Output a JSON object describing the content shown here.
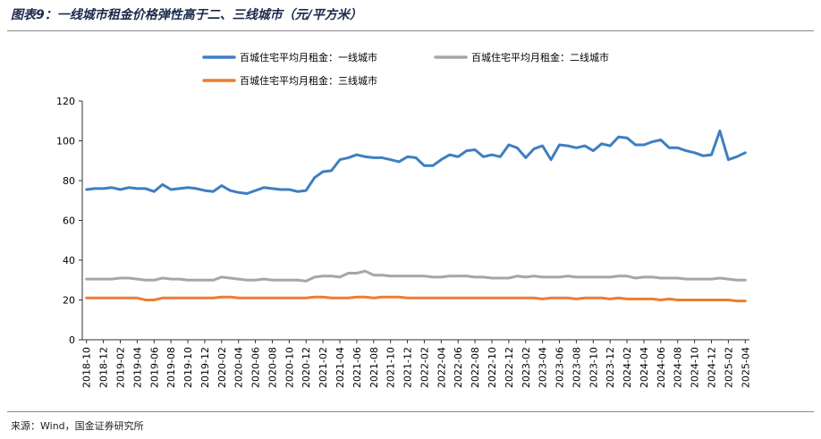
{
  "page": {
    "title": "图表9：一线城市租金价格弹性高于二、三线城市（元/平方米）",
    "source": "来源：Wind，国金证券研究所"
  },
  "chart_data": {
    "type": "line",
    "x": [
      "2018-10",
      "2018-11",
      "2018-12",
      "2019-01",
      "2019-02",
      "2019-03",
      "2019-04",
      "2019-05",
      "2019-06",
      "2019-07",
      "2019-08",
      "2019-09",
      "2019-10",
      "2019-11",
      "2019-12",
      "2020-01",
      "2020-02",
      "2020-03",
      "2020-04",
      "2020-05",
      "2020-06",
      "2020-07",
      "2020-08",
      "2020-09",
      "2020-10",
      "2020-11",
      "2020-12",
      "2021-01",
      "2021-02",
      "2021-03",
      "2021-04",
      "2021-05",
      "2021-06",
      "2021-07",
      "2021-08",
      "2021-09",
      "2021-10",
      "2021-11",
      "2021-12",
      "2022-01",
      "2022-02",
      "2022-03",
      "2022-04",
      "2022-05",
      "2022-06",
      "2022-07",
      "2022-08",
      "2022-09",
      "2022-10",
      "2022-11",
      "2022-12",
      "2023-01",
      "2023-02",
      "2023-03",
      "2023-04",
      "2023-05",
      "2023-06",
      "2023-07",
      "2023-08",
      "2023-09",
      "2023-10",
      "2023-11",
      "2023-12",
      "2024-01",
      "2024-02",
      "2024-03",
      "2024-04",
      "2024-05",
      "2024-06",
      "2024-07",
      "2024-08",
      "2024-09",
      "2024-10",
      "2024-11",
      "2024-12",
      "2025-01",
      "2025-02",
      "2025-03",
      "2025-04"
    ],
    "tick_labels": [
      "2018-10",
      "2018-12",
      "2019-02",
      "2019-04",
      "2019-06",
      "2019-08",
      "2019-10",
      "2019-12",
      "2020-02",
      "2020-04",
      "2020-06",
      "2020-08",
      "2020-10",
      "2020-12",
      "2021-02",
      "2021-04",
      "2021-06",
      "2021-08",
      "2021-10",
      "2021-12",
      "2022-02",
      "2022-04",
      "2022-06",
      "2022-08",
      "2022-10",
      "2022-12",
      "2023-02",
      "2023-04",
      "2023-06",
      "2023-08",
      "2023-10",
      "2023-12",
      "2024-02",
      "2024-04",
      "2024-06",
      "2024-08",
      "2024-10",
      "2024-12",
      "2025-02",
      "2025-04"
    ],
    "y_ticks": [
      0,
      20,
      40,
      60,
      80,
      100,
      120
    ],
    "ylim": [
      0,
      120
    ],
    "legend_position": "top",
    "grid": false,
    "series": [
      {
        "name": "百城住宅平均月租金：一线城市",
        "color": "#3f7ec1",
        "values": [
          75.5,
          76,
          76,
          76.5,
          75.5,
          76.5,
          76,
          76,
          74.5,
          78,
          75.5,
          76,
          76.5,
          76,
          75,
          74.5,
          77.5,
          75,
          74,
          73.5,
          75,
          76.5,
          76,
          75.5,
          75.5,
          74.5,
          75,
          81.5,
          84.5,
          85,
          90.5,
          91.5,
          93,
          92,
          91.5,
          91.5,
          90.5,
          89.5,
          92,
          91.5,
          87.5,
          87.5,
          90.5,
          93,
          92,
          95,
          95.5,
          92,
          93,
          92,
          98,
          96.5,
          91.5,
          96,
          97.5,
          90.5,
          98,
          97.5,
          96.5,
          97.5,
          95,
          98.5,
          97.5,
          102,
          101.5,
          98,
          98,
          99.5,
          100.5,
          96.5,
          96.5,
          95,
          94,
          92.5,
          93,
          105,
          90.5,
          92,
          94
        ]
      },
      {
        "name": "百城住宅平均月租金：二线城市",
        "color": "#a6a6a6",
        "values": [
          30.5,
          30.5,
          30.5,
          30.5,
          31,
          31,
          30.5,
          30,
          30,
          31,
          30.5,
          30.5,
          30,
          30,
          30,
          30,
          31.5,
          31,
          30.5,
          30,
          30,
          30.5,
          30,
          30,
          30,
          30,
          29.5,
          31.5,
          32,
          32,
          31.5,
          33.5,
          33.5,
          34.5,
          32.5,
          32.5,
          32,
          32,
          32,
          32,
          32,
          31.5,
          31.5,
          32,
          32,
          32,
          31.5,
          31.5,
          31,
          31,
          31,
          32,
          31.5,
          32,
          31.5,
          31.5,
          31.5,
          32,
          31.5,
          31.5,
          31.5,
          31.5,
          31.5,
          32,
          32,
          31,
          31.5,
          31.5,
          31,
          31,
          31,
          30.5,
          30.5,
          30.5,
          30.5,
          31,
          30.5,
          30,
          30
        ]
      },
      {
        "name": "百城住宅平均月租金：三线城市",
        "color": "#ed7d31",
        "values": [
          21,
          21,
          21,
          21,
          21,
          21,
          21,
          20,
          20,
          21,
          21,
          21,
          21,
          21,
          21,
          21,
          21.5,
          21.5,
          21,
          21,
          21,
          21,
          21,
          21,
          21,
          21,
          21,
          21.5,
          21.5,
          21,
          21,
          21,
          21.5,
          21.5,
          21,
          21.5,
          21.5,
          21.5,
          21,
          21,
          21,
          21,
          21,
          21,
          21,
          21,
          21,
          21,
          21,
          21,
          21,
          21,
          21,
          21,
          20.5,
          21,
          21,
          21,
          20.5,
          21,
          21,
          21,
          20.5,
          21,
          20.5,
          20.5,
          20.5,
          20.5,
          20,
          20.5,
          20,
          20,
          20,
          20,
          20,
          20,
          20,
          19.5,
          19.5
        ]
      }
    ]
  }
}
